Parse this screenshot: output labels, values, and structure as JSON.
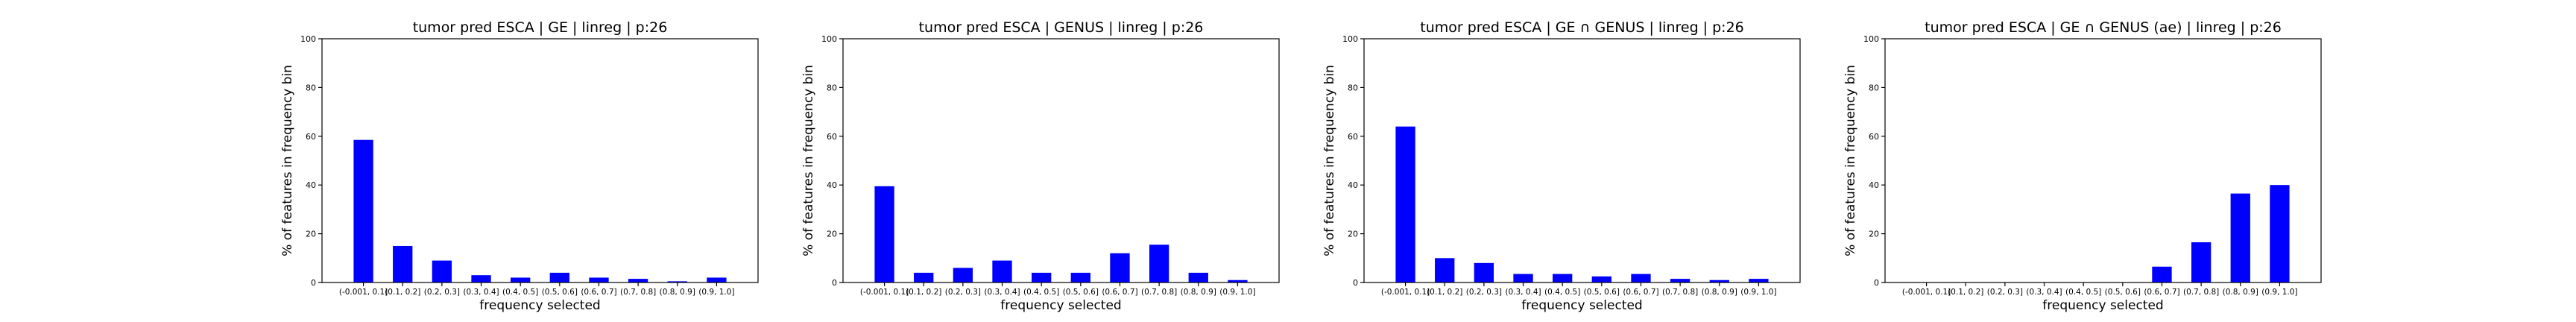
{
  "chart_data": [
    {
      "type": "bar",
      "title": "tumor pred ESCA | GE | linreg | p:26",
      "xlabel": "frequency selected",
      "ylabel": "% of features in frequency bin",
      "categories": [
        "(-0.001, 0.1]",
        "(0.1, 0.2]",
        "(0.2, 0.3]",
        "(0.3, 0.4]",
        "(0.4, 0.5]",
        "(0.5, 0.6]",
        "(0.6, 0.7]",
        "(0.7, 0.8]",
        "(0.8, 0.9]",
        "(0.9, 1.0]"
      ],
      "values": [
        58.5,
        15,
        9,
        3,
        2,
        4,
        2,
        1.5,
        0.5,
        2
      ],
      "ylim": [
        0,
        100
      ],
      "yticks": [
        0,
        20,
        40,
        60,
        80,
        100
      ],
      "bar_color": "#0000ff",
      "grid": false
    },
    {
      "type": "bar",
      "title": "tumor pred ESCA | GENUS | linreg | p:26",
      "xlabel": "frequency selected",
      "ylabel": "% of features in frequency bin",
      "categories": [
        "(-0.001, 0.1]",
        "(0.1, 0.2]",
        "(0.2, 0.3]",
        "(0.3, 0.4]",
        "(0.4, 0.5]",
        "(0.5, 0.6]",
        "(0.6, 0.7]",
        "(0.7, 0.8]",
        "(0.8, 0.9]",
        "(0.9, 1.0]"
      ],
      "values": [
        39.5,
        4,
        6,
        9,
        4,
        4,
        12,
        15.5,
        4,
        1
      ],
      "ylim": [
        0,
        100
      ],
      "yticks": [
        0,
        20,
        40,
        60,
        80,
        100
      ],
      "bar_color": "#0000ff",
      "grid": false
    },
    {
      "type": "bar",
      "title": "tumor pred ESCA | GE ∩ GENUS | linreg | p:26",
      "xlabel": "frequency selected",
      "ylabel": "% of features in frequency bin",
      "categories": [
        "(-0.001, 0.1]",
        "(0.1, 0.2]",
        "(0.2, 0.3]",
        "(0.3, 0.4]",
        "(0.4, 0.5]",
        "(0.5, 0.6]",
        "(0.6, 0.7]",
        "(0.7, 0.8]",
        "(0.8, 0.9]",
        "(0.9, 1.0]"
      ],
      "values": [
        64,
        10,
        8,
        3.5,
        3.5,
        2.5,
        3.5,
        1.5,
        1,
        1.5
      ],
      "ylim": [
        0,
        100
      ],
      "yticks": [
        0,
        20,
        40,
        60,
        80,
        100
      ],
      "bar_color": "#0000ff",
      "grid": false
    },
    {
      "type": "bar",
      "title": "tumor pred ESCA | GE ∩ GENUS (ae) | linreg | p:26",
      "xlabel": "frequency selected",
      "ylabel": "% of features in frequency bin",
      "categories": [
        "(-0.001, 0.1]",
        "(0.1, 0.2]",
        "(0.2, 0.3]",
        "(0.3, 0.4]",
        "(0.4, 0.5]",
        "(0.5, 0.6]",
        "(0.6, 0.7]",
        "(0.7, 0.8]",
        "(0.8, 0.9]",
        "(0.9, 1.0]"
      ],
      "values": [
        0,
        0,
        0,
        0,
        0,
        0,
        6.5,
        16.5,
        36.5,
        40
      ],
      "ylim": [
        0,
        100
      ],
      "yticks": [
        0,
        20,
        40,
        60,
        80,
        100
      ],
      "bar_color": "#0000ff",
      "grid": false
    }
  ]
}
